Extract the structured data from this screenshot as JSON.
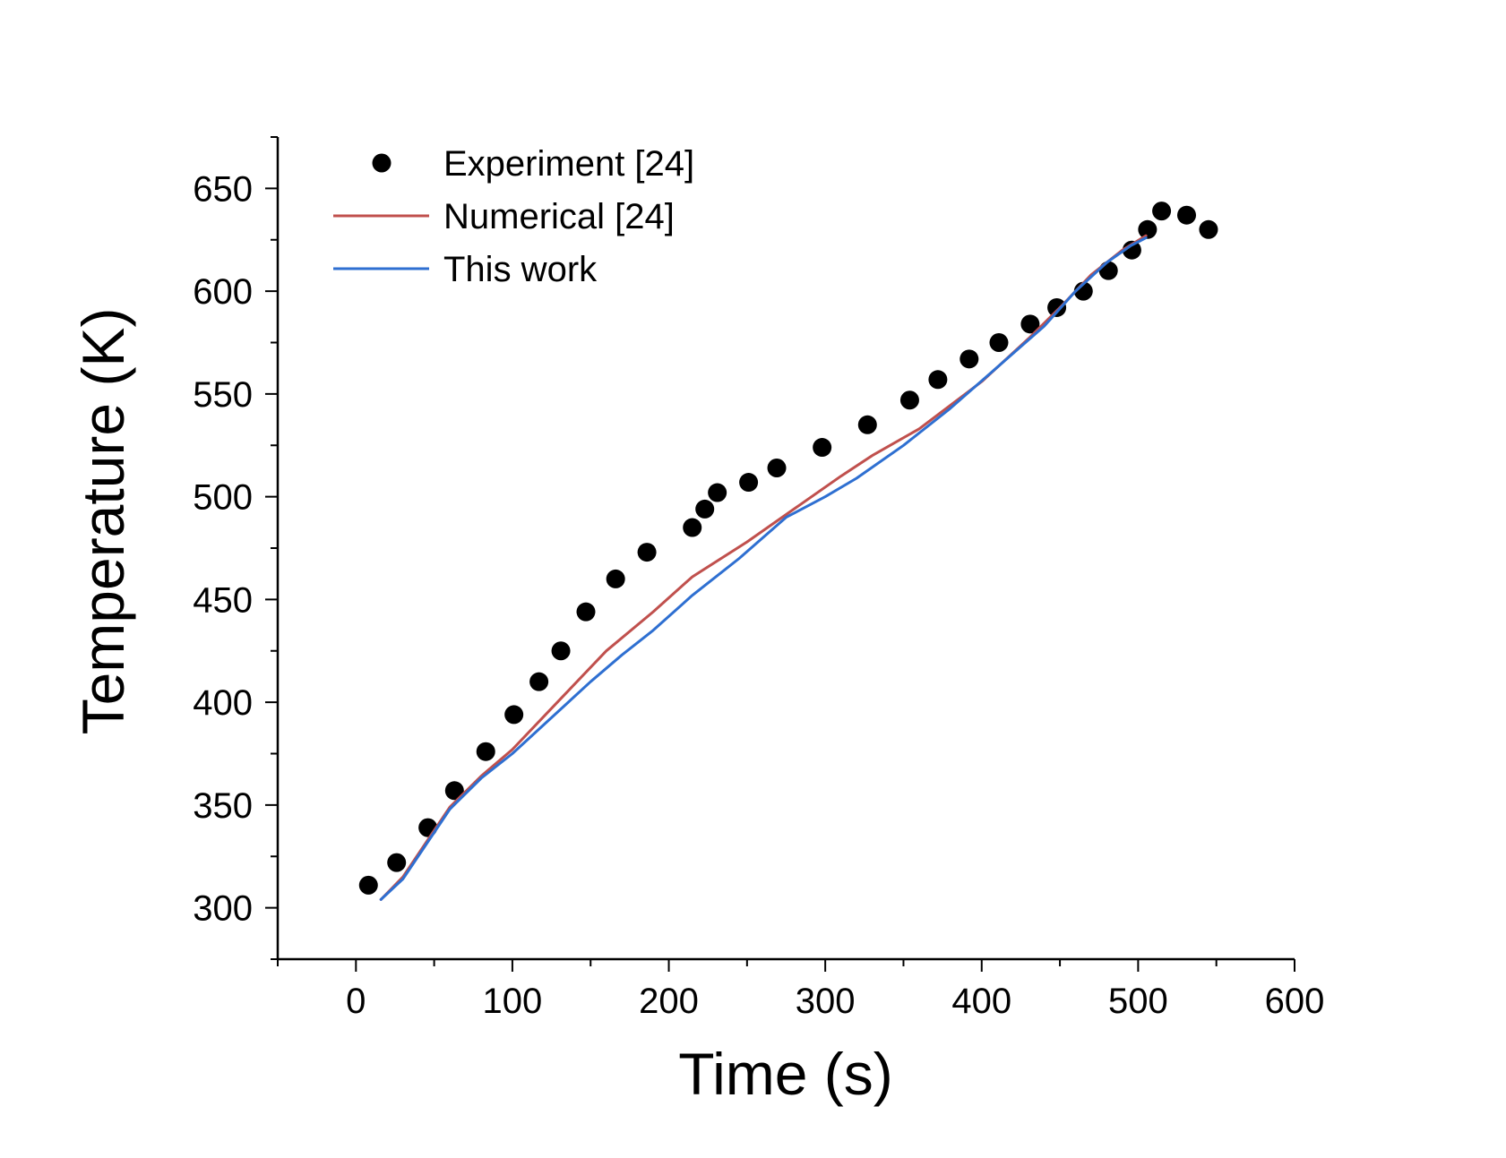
{
  "chart_data": {
    "type": "line",
    "xlabel": "Time (s)",
    "ylabel": "Temperature (K)",
    "xlim": [
      -50,
      600
    ],
    "ylim": [
      275,
      675
    ],
    "x_ticks": [
      0,
      100,
      200,
      300,
      400,
      500,
      600
    ],
    "y_ticks": [
      300,
      350,
      400,
      450,
      500,
      550,
      600,
      650
    ],
    "x_tick_labels": [
      "0",
      "100",
      "200",
      "300",
      "400",
      "500",
      "600"
    ],
    "y_tick_labels": [
      "300",
      "350",
      "400",
      "450",
      "500",
      "550",
      "600",
      "650"
    ],
    "grid": false,
    "legend_position": "top-left",
    "series": [
      {
        "name": "Experiment [24]",
        "kind": "scatter",
        "color": "#000000",
        "points": [
          [
            8,
            311
          ],
          [
            26,
            322
          ],
          [
            46,
            339
          ],
          [
            63,
            357
          ],
          [
            83,
            376
          ],
          [
            101,
            394
          ],
          [
            117,
            410
          ],
          [
            131,
            425
          ],
          [
            147,
            444
          ],
          [
            166,
            460
          ],
          [
            186,
            473
          ],
          [
            215,
            485
          ],
          [
            223,
            494
          ],
          [
            231,
            502
          ],
          [
            251,
            507
          ],
          [
            269,
            514
          ],
          [
            298,
            524
          ],
          [
            327,
            535
          ],
          [
            354,
            547
          ],
          [
            372,
            557
          ],
          [
            392,
            567
          ],
          [
            411,
            575
          ],
          [
            431,
            584
          ],
          [
            448,
            592
          ],
          [
            465,
            600
          ],
          [
            481,
            610
          ],
          [
            496,
            620
          ],
          [
            506,
            630
          ],
          [
            515,
            639
          ],
          [
            531,
            637
          ],
          [
            545,
            630
          ]
        ]
      },
      {
        "name": "Numerical [24]",
        "kind": "line",
        "color": "#c0504d",
        "points": [
          [
            16,
            304
          ],
          [
            30,
            315
          ],
          [
            45,
            332
          ],
          [
            60,
            349
          ],
          [
            80,
            364
          ],
          [
            100,
            377
          ],
          [
            130,
            401
          ],
          [
            160,
            425
          ],
          [
            190,
            444
          ],
          [
            215,
            461
          ],
          [
            250,
            478
          ],
          [
            280,
            494
          ],
          [
            310,
            510
          ],
          [
            330,
            520
          ],
          [
            360,
            533
          ],
          [
            400,
            556
          ],
          [
            430,
            577
          ],
          [
            450,
            592
          ],
          [
            470,
            608
          ],
          [
            490,
            620
          ],
          [
            505,
            627
          ]
        ]
      },
      {
        "name": "This work",
        "kind": "line",
        "color": "#2e6fd1",
        "points": [
          [
            16,
            304
          ],
          [
            30,
            314
          ],
          [
            45,
            331
          ],
          [
            60,
            348
          ],
          [
            80,
            363
          ],
          [
            100,
            375
          ],
          [
            120,
            389
          ],
          [
            150,
            410
          ],
          [
            170,
            423
          ],
          [
            190,
            435
          ],
          [
            215,
            452
          ],
          [
            245,
            470
          ],
          [
            275,
            490
          ],
          [
            300,
            500
          ],
          [
            320,
            509
          ],
          [
            350,
            525
          ],
          [
            380,
            543
          ],
          [
            410,
            563
          ],
          [
            440,
            583
          ],
          [
            460,
            600
          ],
          [
            480,
            614
          ],
          [
            495,
            622
          ],
          [
            505,
            626
          ]
        ]
      }
    ]
  }
}
